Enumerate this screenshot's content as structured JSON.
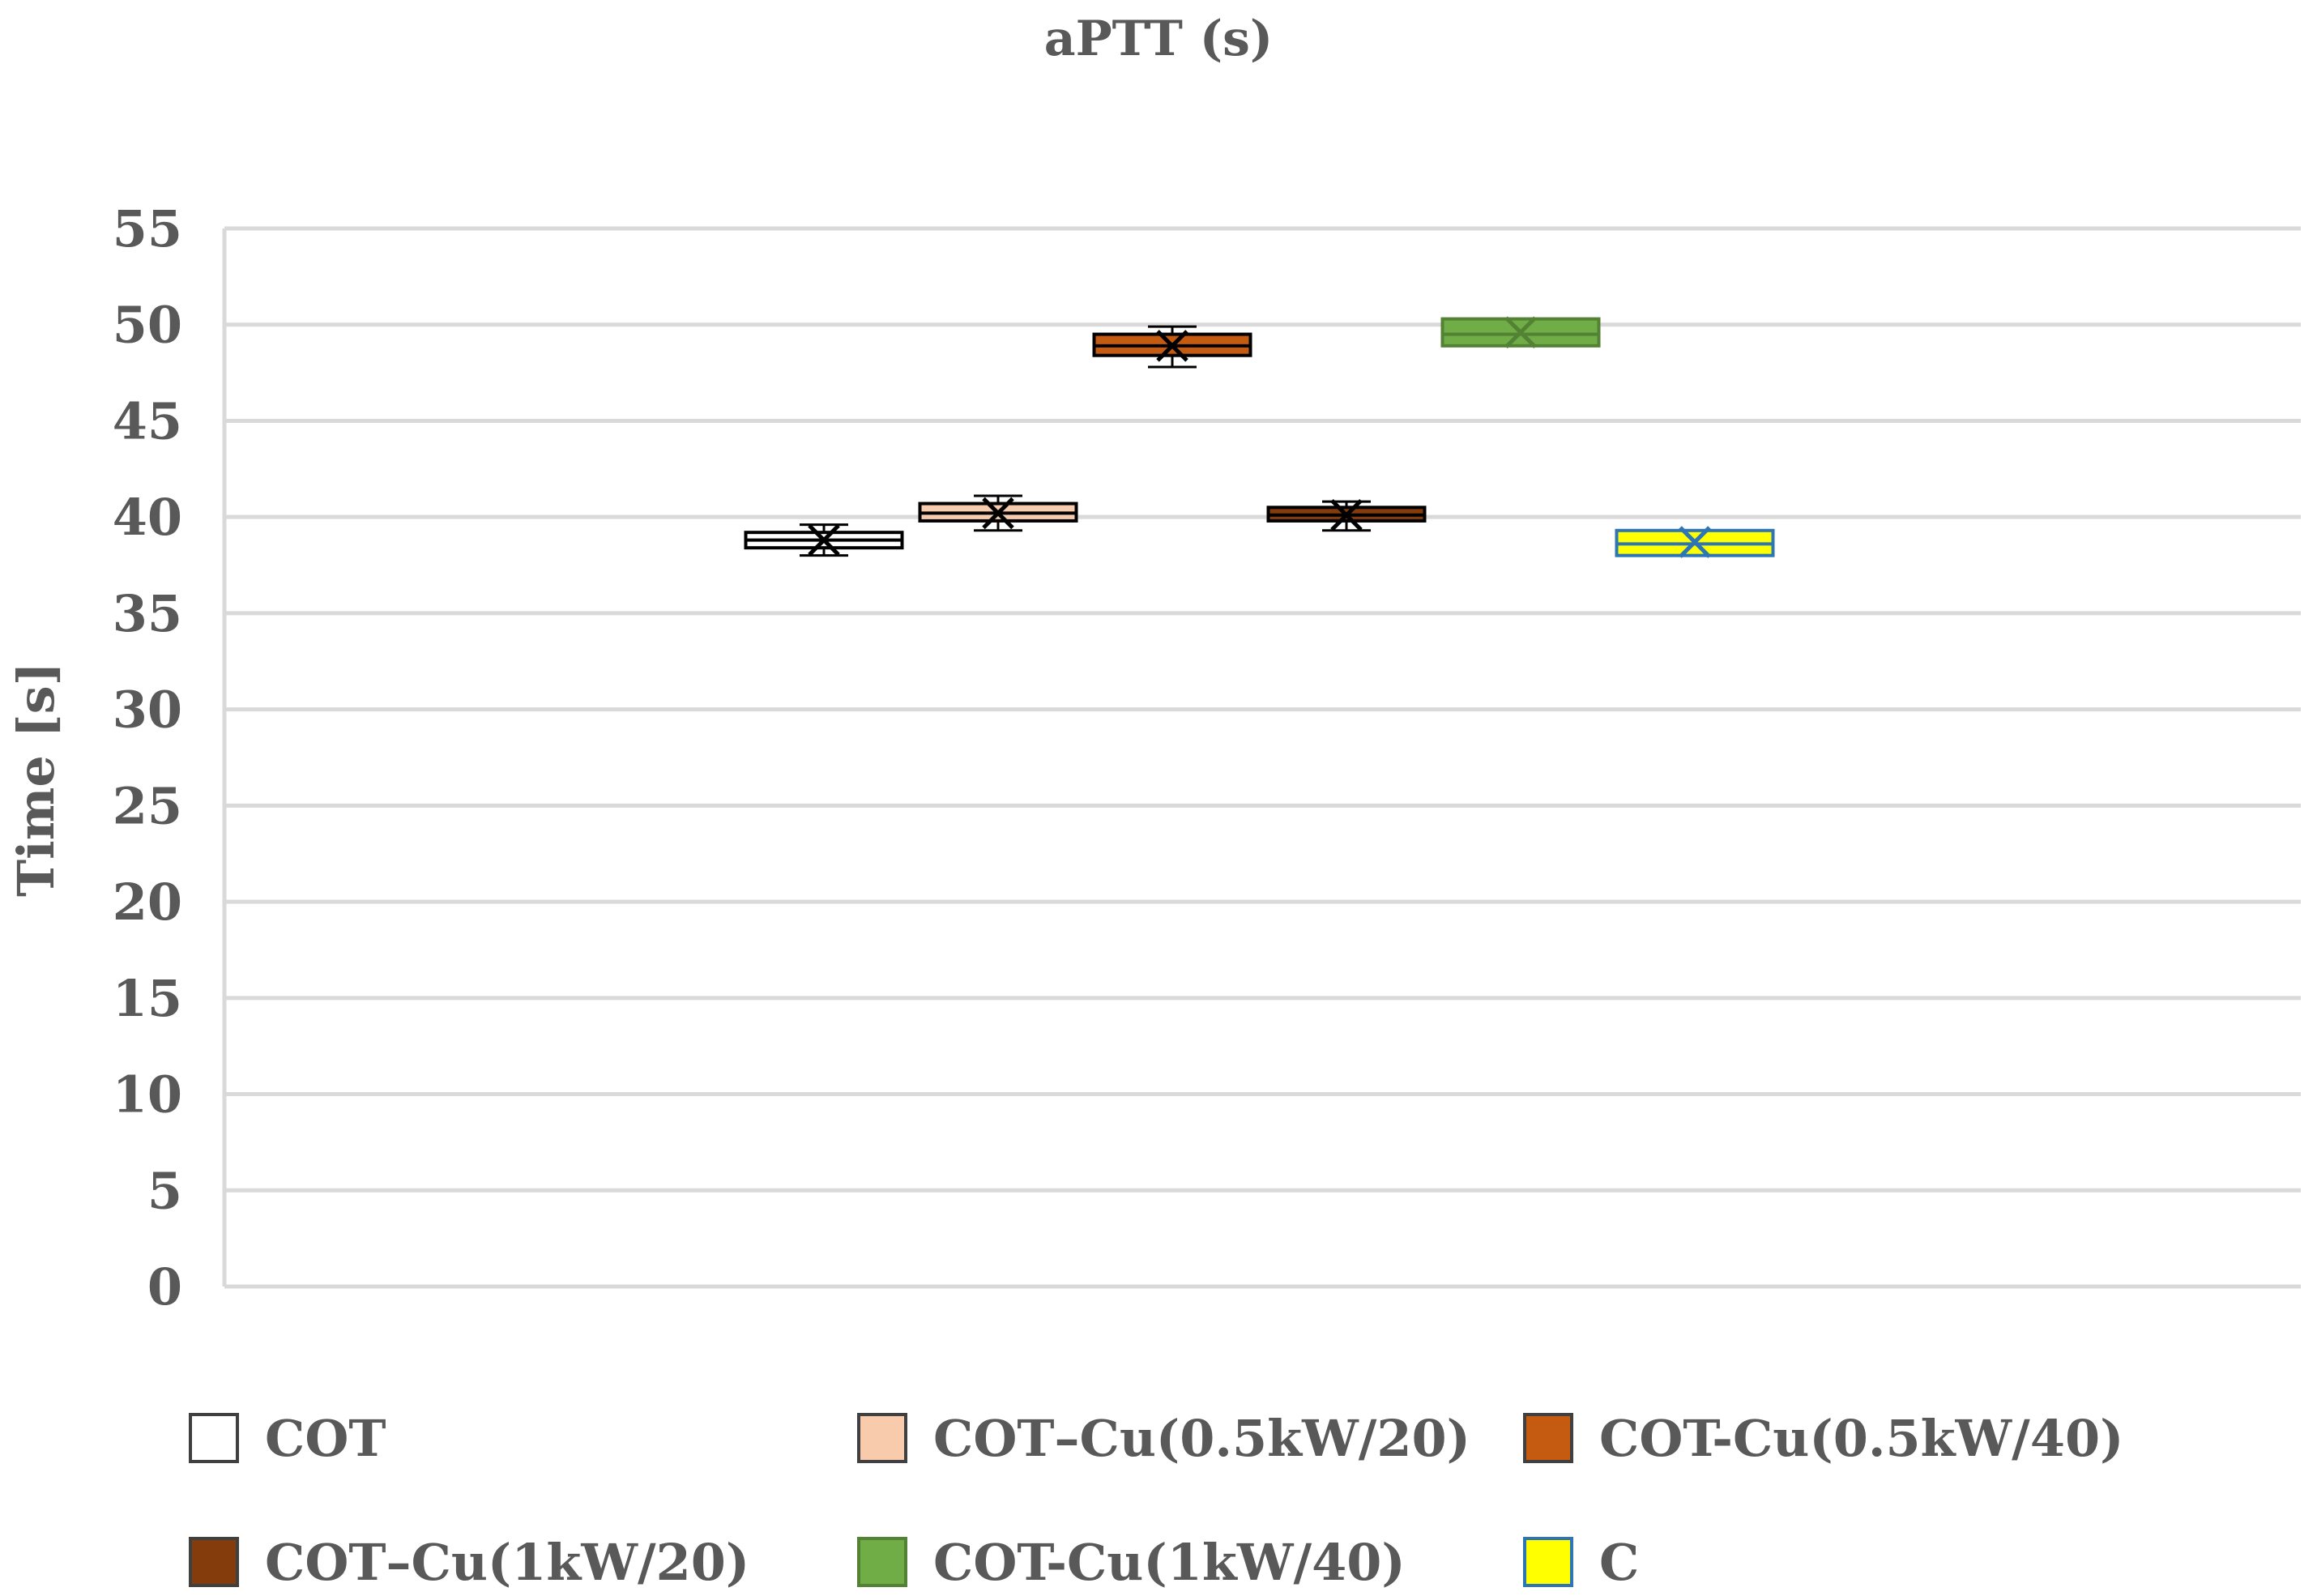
{
  "chart_data": {
    "type": "box",
    "title": "aPTT (s)",
    "xlabel": "",
    "ylabel": "Time [s]",
    "ylim": [
      0,
      55
    ],
    "yticks": [
      0,
      5,
      10,
      15,
      20,
      25,
      30,
      35,
      40,
      45,
      50,
      55
    ],
    "grid": true,
    "legend_position": "bottom",
    "series": [
      {
        "name": "COT",
        "q1": 38.4,
        "median": 38.8,
        "q3": 39.2,
        "mean": 38.8,
        "min": 38.0,
        "max": 39.6,
        "fill": "#ffffff",
        "stroke": "#000000",
        "marker": "#000000"
      },
      {
        "name": "COT–Cu(0.5kW/20)",
        "q1": 39.8,
        "median": 40.2,
        "q3": 40.7,
        "mean": 40.2,
        "min": 39.3,
        "max": 41.1,
        "fill": "#f8cbad",
        "stroke": "#000000",
        "marker": "#000000"
      },
      {
        "name": "COT-Cu(0.5kW/40)",
        "q1": 48.4,
        "median": 48.9,
        "q3": 49.5,
        "mean": 48.9,
        "min": 47.8,
        "max": 49.9,
        "fill": "#c55a11",
        "stroke": "#000000",
        "marker": "#000000"
      },
      {
        "name": "COT–Cu(1kW/20)",
        "q1": 39.8,
        "median": 40.1,
        "q3": 40.5,
        "mean": 40.1,
        "min": 39.3,
        "max": 40.8,
        "fill": "#843c0c",
        "stroke": "#000000",
        "marker": "#000000"
      },
      {
        "name": "COT-Cu(1kW/40)",
        "q1": 48.9,
        "median": 49.5,
        "q3": 50.3,
        "mean": 49.6,
        "min": 48.9,
        "max": 50.3,
        "fill": "#70ad47",
        "stroke": "#548235",
        "marker": "#548235"
      },
      {
        "name": "C",
        "q1": 38.0,
        "median": 38.6,
        "q3": 39.3,
        "mean": 38.7,
        "min": 38.0,
        "max": 39.3,
        "fill": "#ffff00",
        "stroke": "#2e75b6",
        "marker": "#2e75b6"
      }
    ]
  }
}
